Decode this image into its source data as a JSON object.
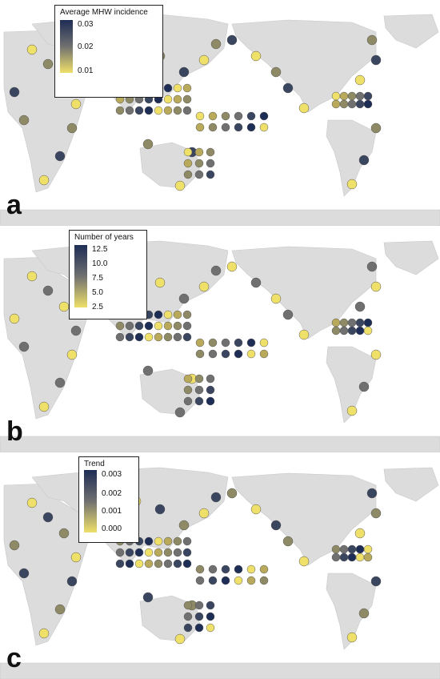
{
  "panels": [
    {
      "letter": "a",
      "legend": {
        "title": "Average MHW incidence",
        "ticks": [
          "0.03",
          "0.02",
          "0.01"
        ]
      }
    },
    {
      "letter": "b",
      "legend": {
        "title": "Number of years",
        "ticks": [
          "12.5",
          "10.0",
          "7.5",
          "5.0",
          "2.5"
        ]
      }
    },
    {
      "letter": "c",
      "legend": {
        "title": "Trend",
        "ticks": [
          "0.003",
          "0.002",
          "0.001",
          "0.000"
        ]
      }
    }
  ],
  "colors": {
    "land": "#dcdcdc",
    "high": "#1e2d55",
    "mid": "#707070",
    "low": "#efe06a"
  }
}
